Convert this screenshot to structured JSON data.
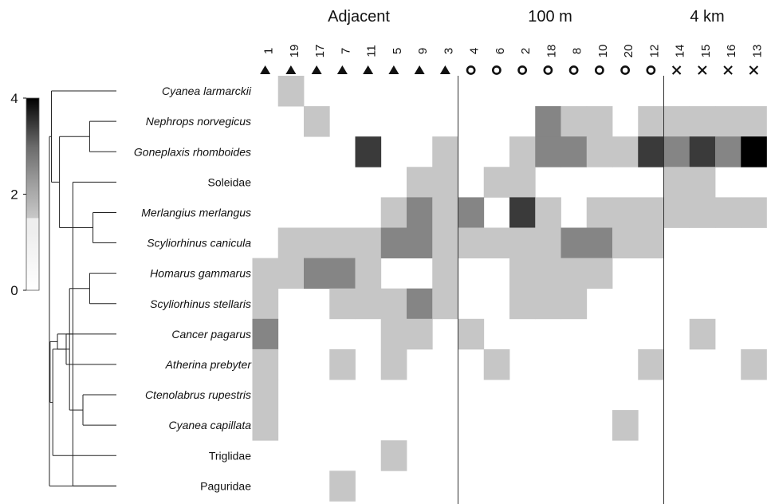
{
  "chart_data": {
    "type": "heatmap",
    "groups": [
      {
        "label": "Adjacent",
        "symbol": "triangle"
      },
      {
        "label": "100 m",
        "symbol": "circle"
      },
      {
        "label": "4 km",
        "symbol": "cross"
      }
    ],
    "columns": [
      {
        "label": "1",
        "group": 0
      },
      {
        "label": "19",
        "group": 0
      },
      {
        "label": "17",
        "group": 0
      },
      {
        "label": "7",
        "group": 0
      },
      {
        "label": "11",
        "group": 0
      },
      {
        "label": "5",
        "group": 0
      },
      {
        "label": "9",
        "group": 0
      },
      {
        "label": "3",
        "group": 0
      },
      {
        "label": "4",
        "group": 1
      },
      {
        "label": "6",
        "group": 1
      },
      {
        "label": "2",
        "group": 1
      },
      {
        "label": "18",
        "group": 1
      },
      {
        "label": "8",
        "group": 1
      },
      {
        "label": "10",
        "group": 1
      },
      {
        "label": "20",
        "group": 1
      },
      {
        "label": "12",
        "group": 1
      },
      {
        "label": "14",
        "group": 2
      },
      {
        "label": "15",
        "group": 2
      },
      {
        "label": "16",
        "group": 2
      },
      {
        "label": "13",
        "group": 2
      }
    ],
    "rows": [
      {
        "label": "Cyanea larmarckii",
        "italic": true
      },
      {
        "label": "Nephrops norvegicus",
        "italic": true
      },
      {
        "label": "Goneplaxis rhomboides",
        "italic": true
      },
      {
        "label": "Soleidae",
        "italic": false
      },
      {
        "label": "Merlangius merlangus",
        "italic": true
      },
      {
        "label": "Scyliorhinus canicula",
        "italic": true
      },
      {
        "label": "Homarus gammarus",
        "italic": true
      },
      {
        "label": "Scyliorhinus stellaris",
        "italic": true
      },
      {
        "label": "Cancer pagarus",
        "italic": true
      },
      {
        "label": "Atherina prebyter",
        "italic": true
      },
      {
        "label": "Ctenolabrus rupestris",
        "italic": true
      },
      {
        "label": "Cyanea capillata",
        "italic": true
      },
      {
        "label": "Triglidae",
        "italic": false
      },
      {
        "label": "Paguridae",
        "italic": false
      }
    ],
    "values": [
      [
        0,
        1,
        0,
        0,
        0,
        0,
        0,
        0,
        0,
        0,
        0,
        0,
        0,
        0,
        0,
        0,
        0,
        0,
        0,
        0
      ],
      [
        0,
        0,
        1,
        0,
        0,
        0,
        0,
        0,
        0,
        0,
        0,
        2,
        1,
        1,
        0,
        1,
        1,
        1,
        1,
        1
      ],
      [
        0,
        0,
        0,
        0,
        3,
        0,
        0,
        1,
        0,
        0,
        1,
        2,
        2,
        1,
        1,
        3,
        2,
        3,
        2,
        4
      ],
      [
        0,
        0,
        0,
        0,
        0,
        0,
        1,
        1,
        0,
        1,
        1,
        0,
        0,
        0,
        0,
        0,
        1,
        1,
        0,
        0
      ],
      [
        0,
        0,
        0,
        0,
        0,
        1,
        2,
        1,
        2,
        0,
        3,
        1,
        0,
        1,
        1,
        1,
        1,
        1,
        1,
        1
      ],
      [
        0,
        1,
        1,
        1,
        1,
        2,
        2,
        1,
        1,
        1,
        1,
        1,
        2,
        2,
        1,
        1,
        0,
        0,
        0,
        0
      ],
      [
        1,
        1,
        2,
        2,
        1,
        0,
        0,
        1,
        0,
        0,
        1,
        1,
        1,
        1,
        0,
        0,
        0,
        0,
        0,
        0
      ],
      [
        1,
        0,
        0,
        1,
        1,
        1,
        2,
        1,
        0,
        0,
        1,
        1,
        1,
        0,
        0,
        0,
        0,
        0,
        0,
        0
      ],
      [
        2,
        0,
        0,
        0,
        0,
        1,
        1,
        0,
        1,
        0,
        0,
        0,
        0,
        0,
        0,
        0,
        0,
        1,
        0,
        0
      ],
      [
        1,
        0,
        0,
        1,
        0,
        1,
        0,
        0,
        0,
        1,
        0,
        0,
        0,
        0,
        0,
        1,
        0,
        0,
        0,
        1
      ],
      [
        1,
        0,
        0,
        0,
        0,
        0,
        0,
        0,
        0,
        0,
        0,
        0,
        0,
        0,
        0,
        0,
        0,
        0,
        0,
        0
      ],
      [
        1,
        0,
        0,
        0,
        0,
        0,
        0,
        0,
        0,
        0,
        0,
        0,
        0,
        0,
        1,
        0,
        0,
        0,
        0,
        0
      ],
      [
        0,
        0,
        0,
        0,
        0,
        1,
        0,
        0,
        0,
        0,
        0,
        0,
        0,
        0,
        0,
        0,
        0,
        0,
        0,
        0
      ],
      [
        0,
        0,
        0,
        1,
        0,
        0,
        0,
        0,
        0,
        0,
        0,
        0,
        0,
        0,
        0,
        0,
        0,
        0,
        0,
        0
      ]
    ],
    "colorscale": {
      "min": 0,
      "max": 4,
      "ticks": [
        "0",
        "2",
        "4"
      ],
      "colors": {
        "0": "#ffffff",
        "1": "#c6c6c6",
        "2": "#858585",
        "3": "#3a3a3a",
        "4": "#000000"
      }
    },
    "dendrogram": {
      "leaves": 14,
      "clusters": [
        {
          "a": 6,
          "b": 7,
          "height": 0.4
        },
        {
          "a": 4,
          "b": 5,
          "height": 0.35
        },
        {
          "a": 1,
          "b": 2,
          "height": 0.4
        },
        {
          "a": 10,
          "b": 11,
          "height": 0.5
        },
        {
          "a": 8,
          "b": 9,
          "height": 0.75
        },
        {
          "a": 13,
          "b": 3,
          "height": 0.65
        },
        {
          "a": 17,
          "b": 14,
          "height": 0.7
        },
        {
          "a": 16,
          "b": 15,
          "height": 0.85
        },
        {
          "a": 18,
          "b": 19,
          "height": 0.88
        },
        {
          "a": 20,
          "b": 12,
          "height": 0.95
        },
        {
          "a": 21,
          "b": 0,
          "height": 0.97
        },
        {
          "a": 22,
          "b": 23,
          "height": 0.99
        },
        {
          "a": 24,
          "b": 13,
          "height": 1.0
        }
      ]
    }
  }
}
